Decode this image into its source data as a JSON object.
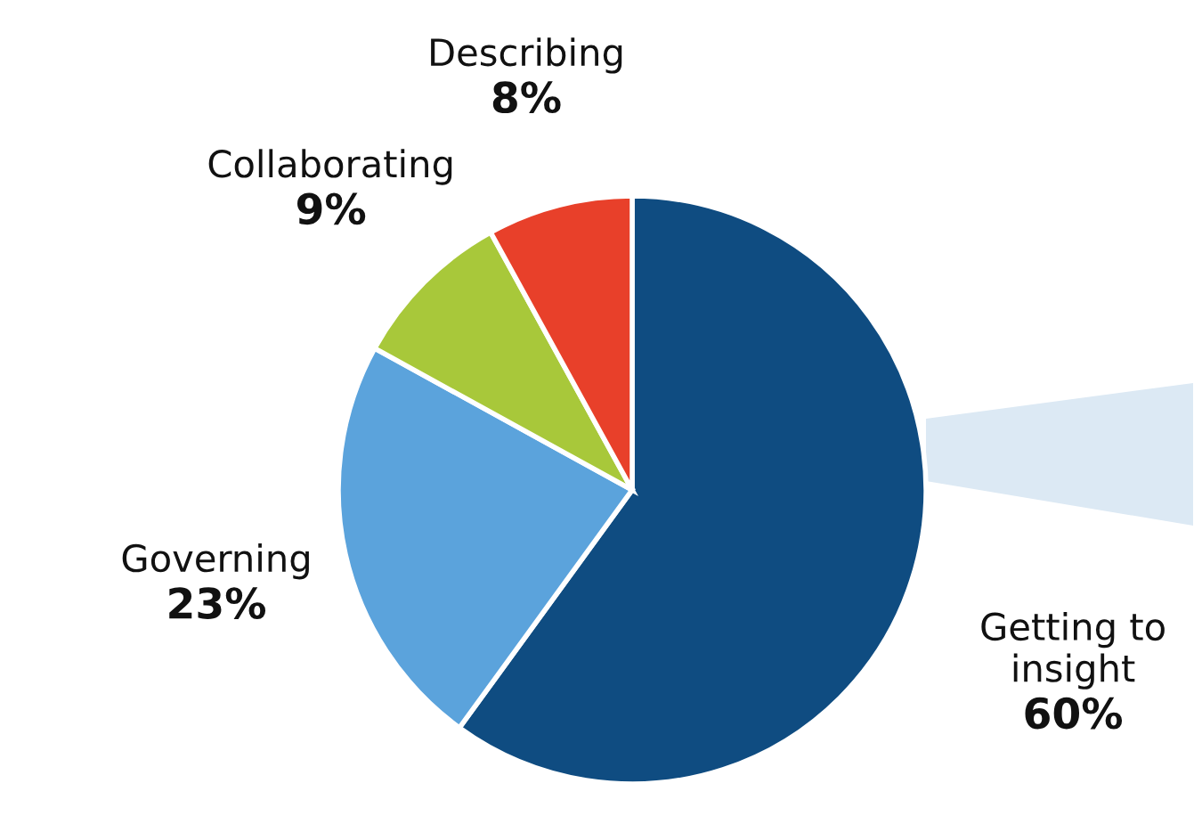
{
  "chart_data": {
    "type": "pie",
    "categories": [
      "Getting to\ninsight",
      "Governing",
      "Collaborating",
      "Describing"
    ],
    "values": [
      60,
      23,
      9,
      8
    ],
    "value_labels": [
      "60%",
      "23%",
      "9%",
      "8%"
    ],
    "colors": [
      "#0f4c81",
      "#5ba3dc",
      "#a8c83a",
      "#e8402a"
    ],
    "legend": false
  }
}
